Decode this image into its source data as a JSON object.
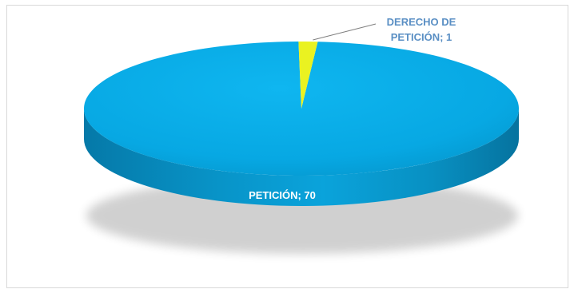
{
  "chart_data": {
    "type": "pie",
    "title": "",
    "series": [
      {
        "categories": [
          "PETICIÓN",
          "DERECHO DE PETICIÓN"
        ],
        "values": [
          70,
          1
        ]
      }
    ],
    "colors": {
      "main": "#08aee8",
      "highlight": "#eaf221"
    },
    "labels": [
      {
        "line1": "PETICIÓN; 70",
        "line2": ""
      },
      {
        "line1": "DERECHO DE",
        "line2": "PETICIÓN; 1"
      }
    ]
  }
}
